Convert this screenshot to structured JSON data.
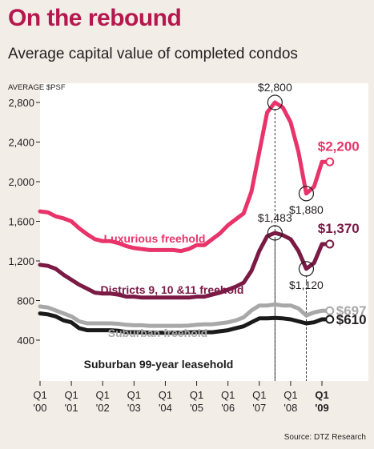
{
  "title": "On the rebound",
  "subtitle": "Average capital value of completed condos",
  "source": "Source: DTZ Research",
  "colors": {
    "background": "#f2ede6",
    "plot_background": "#ffffff",
    "luxurious": "#e8346a",
    "districts": "#7a1a45",
    "suburban_freehold": "#a8a8a8",
    "suburban_leasehold": "#1a1a1a",
    "title": "#b5174e"
  },
  "chart_data": {
    "type": "line",
    "ylabel": "AVERAGE $PSF",
    "ylim": [
      200,
      3000
    ],
    "yticks": [
      400,
      800,
      1200,
      1600,
      2000,
      2400,
      2800
    ],
    "ytick_labels": [
      "400",
      "800",
      "1,200",
      "1,600",
      "2,000",
      "2,400",
      "2,800"
    ],
    "xlim": [
      2000,
      2009.4
    ],
    "xticks": [
      {
        "value": 2000,
        "q": "Q1",
        "yr": "'00",
        "bold": false
      },
      {
        "value": 2001,
        "q": "Q1",
        "yr": "'01",
        "bold": false
      },
      {
        "value": 2002,
        "q": "Q1",
        "yr": "'02",
        "bold": false
      },
      {
        "value": 2003,
        "q": "Q1",
        "yr": "'03",
        "bold": false
      },
      {
        "value": 2004,
        "q": "Q1",
        "yr": "'04",
        "bold": false
      },
      {
        "value": 2005,
        "q": "Q1",
        "yr": "'05",
        "bold": false
      },
      {
        "value": 2006,
        "q": "Q1",
        "yr": "'06",
        "bold": false
      },
      {
        "value": 2007,
        "q": "Q1",
        "yr": "'07",
        "bold": false
      },
      {
        "value": 2008,
        "q": "Q1",
        "yr": "'08",
        "bold": false
      },
      {
        "value": 2009,
        "q": "Q1",
        "yr": "'09",
        "bold": true
      }
    ],
    "grid": false,
    "series": [
      {
        "key": "luxurious",
        "name": "Luxurious freehold",
        "x": [
          2000,
          2000.25,
          2000.5,
          2000.75,
          2001,
          2001.25,
          2001.5,
          2001.75,
          2002,
          2002.25,
          2002.5,
          2002.75,
          2003,
          2003.25,
          2003.5,
          2003.75,
          2004,
          2004.25,
          2004.5,
          2004.75,
          2005,
          2005.25,
          2005.5,
          2005.75,
          2006,
          2006.25,
          2006.5,
          2006.75,
          2007,
          2007.25,
          2007.5,
          2007.75,
          2008,
          2008.25,
          2008.5,
          2008.75,
          2009,
          2009.25
        ],
        "values": [
          1700,
          1690,
          1650,
          1630,
          1600,
          1530,
          1470,
          1420,
          1400,
          1400,
          1380,
          1350,
          1330,
          1320,
          1310,
          1310,
          1310,
          1310,
          1300,
          1320,
          1360,
          1360,
          1420,
          1480,
          1560,
          1620,
          1680,
          1900,
          2300,
          2700,
          2800,
          2750,
          2600,
          2300,
          1880,
          1950,
          2200,
          2200
        ]
      },
      {
        "key": "districts",
        "name": "Districts 9, 10 &11 freehold",
        "x": [
          2000,
          2000.25,
          2000.5,
          2000.75,
          2001,
          2001.25,
          2001.5,
          2001.75,
          2002,
          2002.25,
          2002.5,
          2002.75,
          2003,
          2003.25,
          2003.5,
          2003.75,
          2004,
          2004.25,
          2004.5,
          2004.75,
          2005,
          2005.25,
          2005.5,
          2005.75,
          2006,
          2006.25,
          2006.5,
          2006.75,
          2007,
          2007.25,
          2007.5,
          2007.75,
          2008,
          2008.25,
          2008.5,
          2008.75,
          2009,
          2009.25
        ],
        "values": [
          1160,
          1150,
          1120,
          1060,
          1010,
          960,
          920,
          880,
          870,
          870,
          860,
          840,
          840,
          830,
          830,
          830,
          830,
          830,
          830,
          830,
          840,
          840,
          860,
          880,
          910,
          940,
          980,
          1100,
          1300,
          1450,
          1483,
          1460,
          1420,
          1300,
          1120,
          1180,
          1370,
          1370
        ]
      },
      {
        "key": "suburban_freehold",
        "name": "Suburban freehold",
        "x": [
          2000,
          2000.25,
          2000.5,
          2000.75,
          2001,
          2001.25,
          2001.5,
          2001.75,
          2002,
          2002.25,
          2002.5,
          2002.75,
          2003,
          2003.25,
          2003.5,
          2003.75,
          2004,
          2004.25,
          2004.5,
          2004.75,
          2005,
          2005.25,
          2005.5,
          2005.75,
          2006,
          2006.25,
          2006.5,
          2006.75,
          2007,
          2007.25,
          2007.5,
          2007.75,
          2008,
          2008.25,
          2008.5,
          2008.75,
          2009,
          2009.25
        ],
        "values": [
          740,
          730,
          700,
          670,
          640,
          590,
          570,
          570,
          570,
          570,
          565,
          555,
          550,
          550,
          545,
          545,
          545,
          545,
          545,
          548,
          555,
          560,
          560,
          570,
          580,
          600,
          630,
          700,
          750,
          750,
          760,
          750,
          750,
          720,
          650,
          680,
          697,
          697
        ]
      },
      {
        "key": "suburban_leasehold",
        "name": "Suburban 99-year leasehold",
        "x": [
          2000,
          2000.25,
          2000.5,
          2000.75,
          2001,
          2001.25,
          2001.5,
          2001.75,
          2002,
          2002.25,
          2002.5,
          2002.75,
          2003,
          2003.25,
          2003.5,
          2003.75,
          2004,
          2004.25,
          2004.5,
          2004.75,
          2005,
          2005.25,
          2005.5,
          2005.75,
          2006,
          2006.25,
          2006.5,
          2006.75,
          2007,
          2007.25,
          2007.5,
          2007.75,
          2008,
          2008.25,
          2008.5,
          2008.75,
          2009,
          2009.25
        ],
        "values": [
          670,
          660,
          640,
          600,
          580,
          520,
          500,
          500,
          500,
          500,
          495,
          480,
          480,
          478,
          475,
          475,
          475,
          475,
          475,
          478,
          480,
          480,
          480,
          490,
          500,
          520,
          540,
          580,
          620,
          620,
          625,
          620,
          610,
          590,
          570,
          580,
          610,
          610
        ]
      }
    ],
    "labels": {
      "luxurious": "Luxurious freehold",
      "districts": "Districts 9, 10 &11 freehold",
      "suburban_freehold": "Suburban freehold",
      "suburban_leasehold": "Suburban 99-year leasehold"
    },
    "annotations": [
      {
        "text": "$2,800",
        "series": "luxurious",
        "x": 2007.5,
        "value": 2800,
        "pos": "above",
        "circle": true,
        "dash": true,
        "bold": false
      },
      {
        "text": "$1,880",
        "series": "luxurious",
        "x": 2008.5,
        "value": 1880,
        "pos": "below",
        "circle": true,
        "dash": false,
        "bold": false
      },
      {
        "text": "$2,200",
        "series": "luxurious",
        "x": 2009.25,
        "value": 2200,
        "pos": "above",
        "circle": false,
        "dash": false,
        "bold": true
      },
      {
        "text": "$1,483",
        "series": "districts",
        "x": 2007.5,
        "value": 1483,
        "pos": "above",
        "circle": true,
        "dash": true,
        "bold": false
      },
      {
        "text": "$1,120",
        "series": "districts",
        "x": 2008.5,
        "value": 1120,
        "pos": "below",
        "circle": true,
        "dash": true,
        "bold": false
      },
      {
        "text": "$1,370",
        "series": "districts",
        "x": 2009.25,
        "value": 1370,
        "pos": "above",
        "circle": false,
        "dash": false,
        "bold": true
      },
      {
        "text": "$697",
        "series": "suburban_freehold",
        "x": 2009.25,
        "value": 697,
        "pos": "right",
        "circle": false,
        "dash": false,
        "bold": true
      },
      {
        "text": "$610",
        "series": "suburban_leasehold",
        "x": 2009.25,
        "value": 610,
        "pos": "right",
        "circle": false,
        "dash": false,
        "bold": true
      }
    ]
  }
}
